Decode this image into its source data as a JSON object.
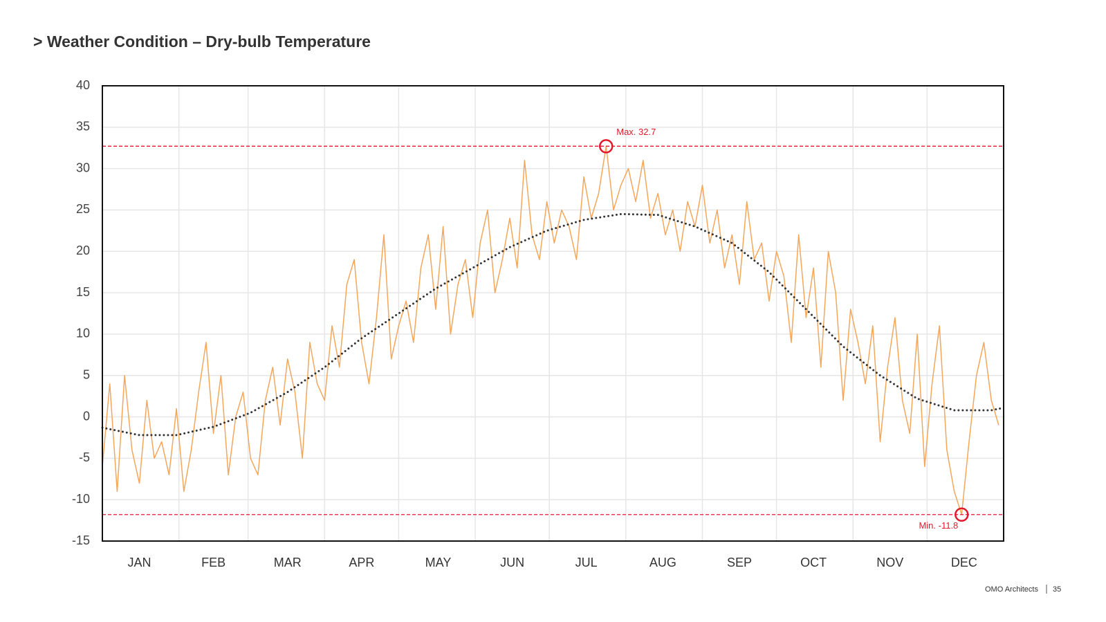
{
  "chart_data": {
    "type": "line",
    "title": "> Weather Condition – Dry-bulb Temperature",
    "xlim": [
      0,
      365
    ],
    "xticks": [
      {
        "value": 15,
        "label": "JAN"
      },
      {
        "value": 45,
        "label": "FEB"
      },
      {
        "value": 75,
        "label": "MAR"
      },
      {
        "value": 105,
        "label": "APR"
      },
      {
        "value": 136,
        "label": "MAY"
      },
      {
        "value": 166,
        "label": "JUN"
      },
      {
        "value": 196,
        "label": "JUL"
      },
      {
        "value": 227,
        "label": "AUG"
      },
      {
        "value": 258,
        "label": "SEP"
      },
      {
        "value": 288,
        "label": "OCT"
      },
      {
        "value": 319,
        "label": "NOV"
      },
      {
        "value": 349,
        "label": "DEC"
      }
    ],
    "x_gridlines": [
      31,
      59,
      90,
      120,
      151,
      181,
      212,
      243,
      273,
      304,
      334
    ],
    "ylim": [
      -15,
      40
    ],
    "yticks": [
      -15,
      -10,
      -5,
      0,
      5,
      10,
      15,
      20,
      25,
      30,
      35,
      40
    ],
    "grid": true,
    "series": [
      {
        "color": "#f4a65a",
        "x": [
          0,
          3,
          6,
          9,
          12,
          15,
          18,
          21,
          24,
          27,
          30,
          33,
          36,
          39,
          42,
          45,
          48,
          51,
          54,
          57,
          60,
          63,
          66,
          69,
          72,
          75,
          78,
          81,
          84,
          87,
          90,
          93,
          96,
          99,
          102,
          105,
          108,
          111,
          114,
          117,
          120,
          123,
          126,
          129,
          132,
          135,
          138,
          141,
          144,
          147,
          150,
          153,
          156,
          159,
          162,
          165,
          168,
          171,
          174,
          177,
          180,
          183,
          186,
          189,
          192,
          195,
          198,
          201,
          204,
          207,
          210,
          213,
          216,
          219,
          222,
          225,
          228,
          231,
          234,
          237,
          240,
          243,
          246,
          249,
          252,
          255,
          258,
          261,
          264,
          267,
          270,
          273,
          276,
          279,
          282,
          285,
          288,
          291,
          294,
          297,
          300,
          303,
          306,
          309,
          312,
          315,
          318,
          321,
          324,
          327,
          330,
          333,
          336,
          339,
          342,
          345,
          348,
          351,
          354,
          357,
          360,
          363
        ],
        "values": [
          -6,
          4,
          -9,
          5,
          -4,
          -8,
          2,
          -5,
          -3,
          -7,
          1,
          -9,
          -4,
          3,
          9,
          -2,
          5,
          -7,
          0,
          3,
          -5,
          -7,
          2,
          6,
          -1,
          7,
          3,
          -5,
          9,
          4,
          2,
          11,
          6,
          16,
          19,
          9,
          4,
          12,
          22,
          7,
          11,
          14,
          9,
          18,
          22,
          13,
          23,
          10,
          16,
          19,
          12,
          21,
          25,
          15,
          19,
          24,
          18,
          31,
          22,
          19,
          26,
          21,
          25,
          23,
          19,
          29,
          24,
          27,
          32.7,
          25,
          28,
          30,
          26,
          31,
          24,
          27,
          22,
          25,
          20,
          26,
          23,
          28,
          21,
          25,
          18,
          22,
          16,
          26,
          19,
          21,
          14,
          20,
          17,
          9,
          22,
          12,
          18,
          6,
          20,
          15,
          2,
          13,
          9,
          4,
          11,
          -3,
          6,
          12,
          2,
          -2,
          10,
          -6,
          4,
          11,
          -4,
          -9,
          -11.8,
          -3,
          5,
          9,
          2,
          -1
        ]
      },
      {
        "color": "#333333",
        "dotted": true,
        "x": [
          0,
          15,
          30,
          45,
          60,
          75,
          90,
          105,
          120,
          135,
          150,
          165,
          180,
          195,
          210,
          225,
          240,
          255,
          270,
          285,
          300,
          315,
          330,
          345,
          360,
          365
        ],
        "values": [
          -1.3,
          -2.2,
          -2.2,
          -1.2,
          0.5,
          3,
          6,
          9.5,
          12.5,
          15.5,
          18,
          20.5,
          22.5,
          23.8,
          24.5,
          24.4,
          23,
          21,
          17.5,
          13,
          8.5,
          5,
          2.2,
          0.8,
          0.8,
          1.1
        ]
      }
    ],
    "annotations": [
      {
        "label": "Max. 32.7",
        "x": 204,
        "value": 32.7,
        "color": "#e0182a"
      },
      {
        "label": "Min. -11.8",
        "x": 348,
        "value": -11.8,
        "color": "#e0182a"
      }
    ]
  },
  "footer": {
    "company": "OMO Architects",
    "page": "35"
  }
}
